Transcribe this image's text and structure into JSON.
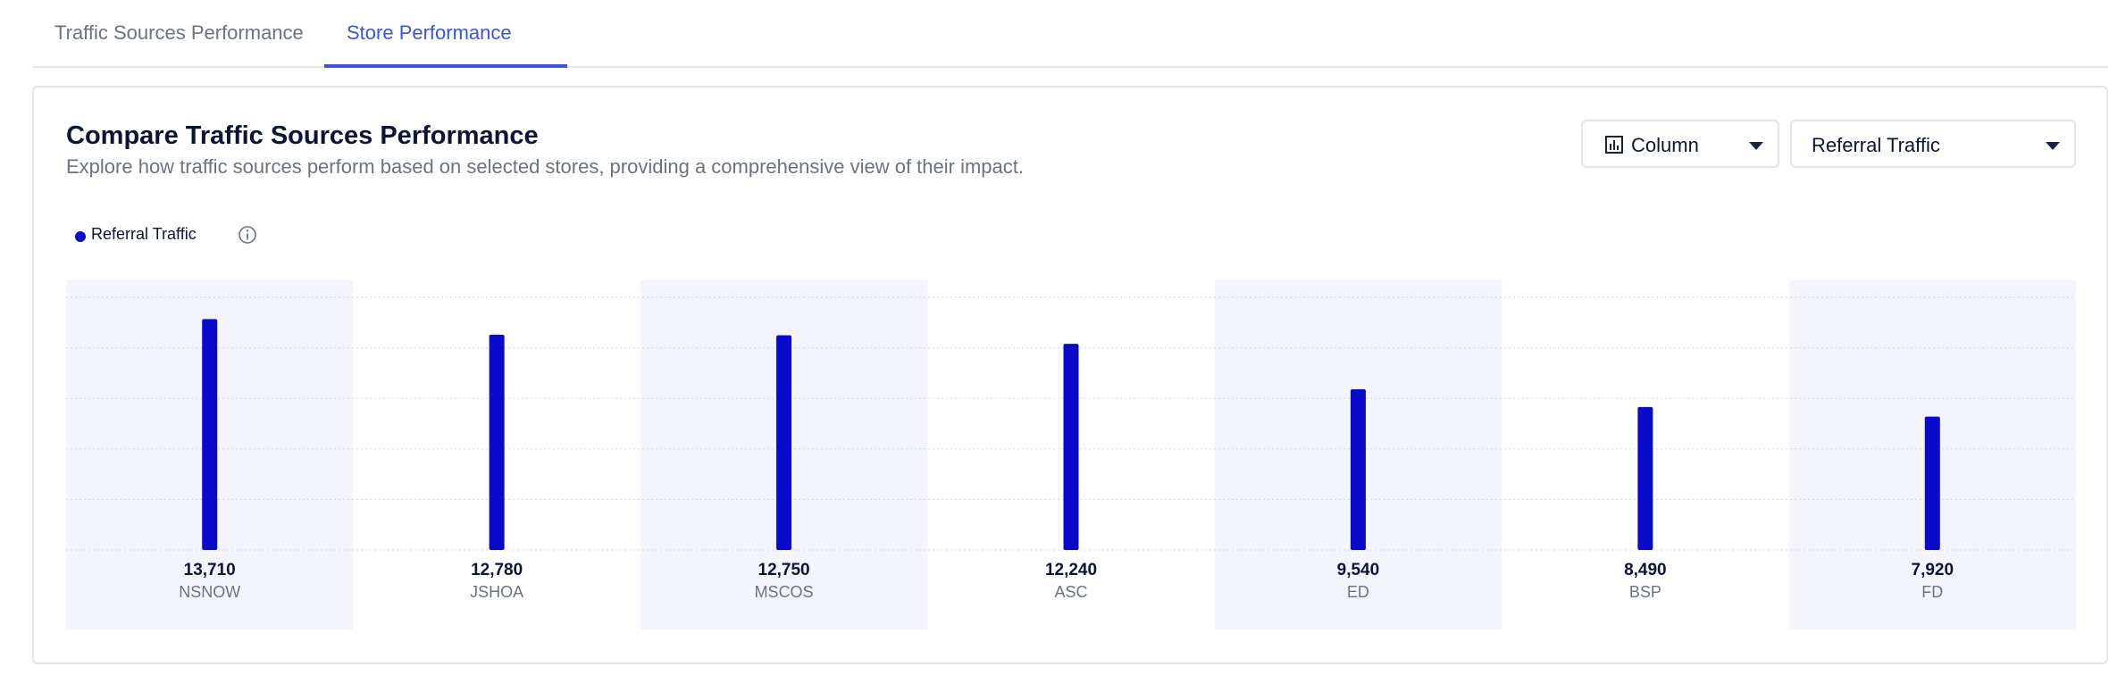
{
  "tabs": [
    {
      "label": "Traffic Sources Performance",
      "active": false
    },
    {
      "label": "Store Performance",
      "active": true
    }
  ],
  "card": {
    "title": "Compare Traffic Sources Performance",
    "subtitle": "Explore how traffic sources perform based on selected stores, providing a comprehensive view of their impact."
  },
  "controls": {
    "chart_type": {
      "label": "Column",
      "icon": "bar-chart-icon"
    },
    "metric": {
      "label": "Referral Traffic",
      "icon": "chevron-down-icon"
    }
  },
  "legend": {
    "label": "Referral Traffic",
    "color": "#0a0acd",
    "info_icon": "info-icon"
  },
  "colors": {
    "accent": "#3755e0",
    "bar": "#0a0acd",
    "band": "#f4f5fc"
  },
  "chart_data": {
    "type": "bar",
    "categories": [
      "NSNOW",
      "JSHOA",
      "MSCOS",
      "ASC",
      "ED",
      "BSP",
      "FD"
    ],
    "series": [
      {
        "name": "Referral Traffic",
        "values": [
          13710,
          12780,
          12750,
          12240,
          9540,
          8490,
          7920
        ]
      }
    ],
    "value_labels": [
      "13,710",
      "12,780",
      "12,750",
      "12,240",
      "9,540",
      "8,490",
      "7,920"
    ],
    "ylim": [
      0,
      15000
    ],
    "grid": true,
    "legend_position": "top-left"
  }
}
